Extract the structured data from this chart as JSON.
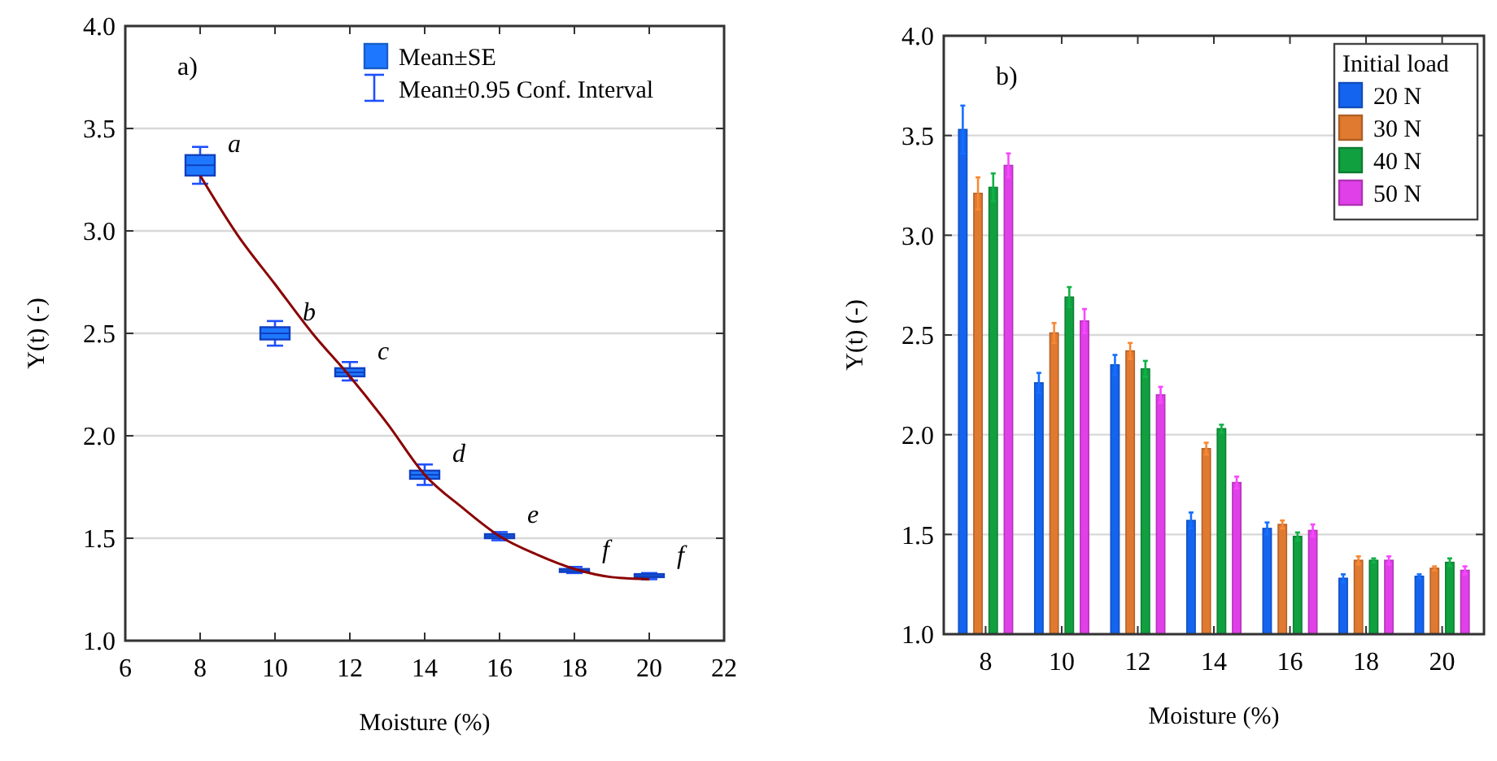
{
  "chart_data": [
    {
      "type": "box",
      "xlabel": "Moisture (%)",
      "ylabel": "Y(t) (-)",
      "xlim": [
        6,
        22
      ],
      "xticks": [
        6,
        8,
        10,
        12,
        14,
        16,
        18,
        20,
        22
      ],
      "ylim": [
        1,
        4
      ],
      "yticks": [
        {
          "value": 1,
          "label": "1.0"
        },
        1.5,
        {
          "value": 2,
          "label": "2.0"
        },
        2.5,
        {
          "value": 3,
          "label": "3.0"
        },
        3.5,
        {
          "value": 4,
          "label": "4.0"
        }
      ],
      "grid": "y",
      "legend": "top",
      "series": [
        {
          "name": "Mean±SE",
          "color": "#1e78ff",
          "x": [
            8,
            10,
            12,
            14,
            16,
            18,
            20
          ],
          "boxes": [
            {
              "low": 3.23,
              "q1": 3.27,
              "median": 3.32,
              "q3": 3.37,
              "high": 3.41
            },
            {
              "low": 2.44,
              "q1": 2.47,
              "median": 2.5,
              "q3": 2.53,
              "high": 2.56
            },
            {
              "low": 2.27,
              "q1": 2.29,
              "median": 2.31,
              "q3": 2.33,
              "high": 2.36
            },
            {
              "low": 1.76,
              "q1": 1.79,
              "median": 1.81,
              "q3": 1.83,
              "high": 1.86
            },
            {
              "low": 1.49,
              "q1": 1.5,
              "median": 1.51,
              "q3": 1.52,
              "high": 1.53
            },
            {
              "low": 1.33,
              "q1": 1.335,
              "median": 1.34,
              "q3": 1.35,
              "high": 1.36
            },
            {
              "low": 1.3,
              "q1": 1.31,
              "median": 1.315,
              "q3": 1.325,
              "high": 1.33
            }
          ]
        },
        {
          "type": "line",
          "color": "#8b0000",
          "x": [
            8,
            9,
            10,
            11,
            12,
            13,
            14,
            15,
            16,
            17,
            18,
            19,
            20
          ],
          "values": [
            3.27,
            2.98,
            2.74,
            2.5,
            2.29,
            2.06,
            1.81,
            1.65,
            1.51,
            1.42,
            1.35,
            1.31,
            1.3
          ]
        }
      ],
      "annotations": [
        "a)",
        "Mean±0.95 Conf. Interval",
        {
          "text": "a",
          "x": 8,
          "y": 3.32
        },
        {
          "text": "b",
          "x": 10,
          "y": 2.5
        },
        {
          "text": "c",
          "x": 12,
          "y": 2.31
        },
        {
          "text": "d",
          "x": 14,
          "y": 1.81
        },
        {
          "text": "e",
          "x": 16,
          "y": 1.51
        },
        {
          "text": "f",
          "x": 18,
          "y": 1.34
        },
        {
          "text": "f",
          "x": 20,
          "y": 1.315
        }
      ]
    },
    {
      "type": "bar",
      "xlabel": "Moisture (%)",
      "ylabel": "Y(t) (-)",
      "categories": [
        "8",
        "10",
        "12",
        "14",
        "16",
        "18",
        "20"
      ],
      "ylim": [
        1,
        4
      ],
      "yticks": [
        {
          "value": 1,
          "label": "1.0"
        },
        1.5,
        {
          "value": 2,
          "label": "2.0"
        },
        2.5,
        {
          "value": 3,
          "label": "3.0"
        },
        3.5,
        {
          "value": 4,
          "label": "4.0"
        }
      ],
      "grid": "y",
      "legend": "top right",
      "legend_title": "Initial load",
      "series": [
        {
          "name": "20 N",
          "color": "#1464f0",
          "values": [
            3.53,
            2.26,
            2.35,
            1.57,
            1.53,
            1.28,
            1.29
          ],
          "errors": [
            0.12,
            0.05,
            0.05,
            0.04,
            0.03,
            0.02,
            0.01
          ]
        },
        {
          "name": "30 N",
          "color": "#e07a30",
          "values": [
            3.21,
            2.51,
            2.42,
            1.93,
            1.55,
            1.37,
            1.33
          ],
          "errors": [
            0.08,
            0.05,
            0.04,
            0.03,
            0.02,
            0.02,
            0.01
          ]
        },
        {
          "name": "40 N",
          "color": "#10a040",
          "values": [
            3.24,
            2.69,
            2.33,
            2.03,
            1.49,
            1.37,
            1.36
          ],
          "errors": [
            0.07,
            0.05,
            0.04,
            0.02,
            0.02,
            0.01,
            0.02
          ]
        },
        {
          "name": "50 N",
          "color": "#e040e8",
          "values": [
            3.35,
            2.57,
            2.2,
            1.76,
            1.52,
            1.37,
            1.32
          ],
          "errors": [
            0.06,
            0.06,
            0.04,
            0.03,
            0.03,
            0.02,
            0.02
          ]
        }
      ],
      "annotations": [
        "b)"
      ]
    }
  ]
}
